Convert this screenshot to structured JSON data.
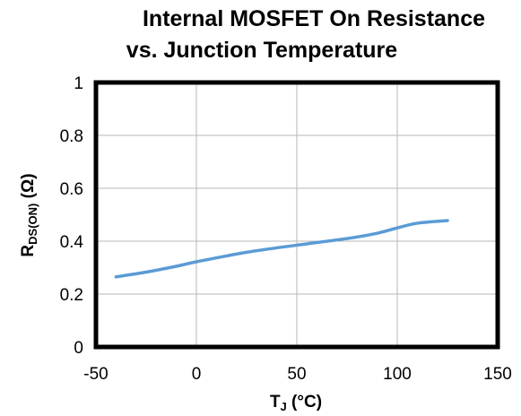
{
  "chart_data": {
    "type": "line",
    "title_lines": [
      "Internal MOSFET On Resistance",
      "vs. Junction Temperature"
    ],
    "xlabel": {
      "main": "T",
      "sub": "J",
      "rest": " (°C)"
    },
    "ylabel": {
      "main": "R",
      "sub": "DS(ON)",
      "rest": " (Ω)"
    },
    "xlim": [
      -50,
      150
    ],
    "ylim": [
      0,
      1
    ],
    "x_ticks": [
      -50,
      0,
      50,
      100,
      150
    ],
    "x_tick_labels": [
      "-50",
      "0",
      "50",
      "100",
      "150"
    ],
    "y_ticks": [
      0,
      0.2,
      0.4,
      0.6,
      0.8,
      1
    ],
    "y_tick_labels": [
      "0",
      "0.2",
      "0.4",
      "0.6",
      "0.8",
      "1"
    ],
    "grid": true,
    "series": [
      {
        "color": "#5B9BD5",
        "x": [
          -40,
          -25,
          -10,
          0,
          25,
          50,
          75,
          90,
          100,
          110,
          125
        ],
        "y": [
          0.265,
          0.283,
          0.305,
          0.322,
          0.358,
          0.385,
          0.41,
          0.43,
          0.45,
          0.468,
          0.478
        ]
      }
    ]
  }
}
